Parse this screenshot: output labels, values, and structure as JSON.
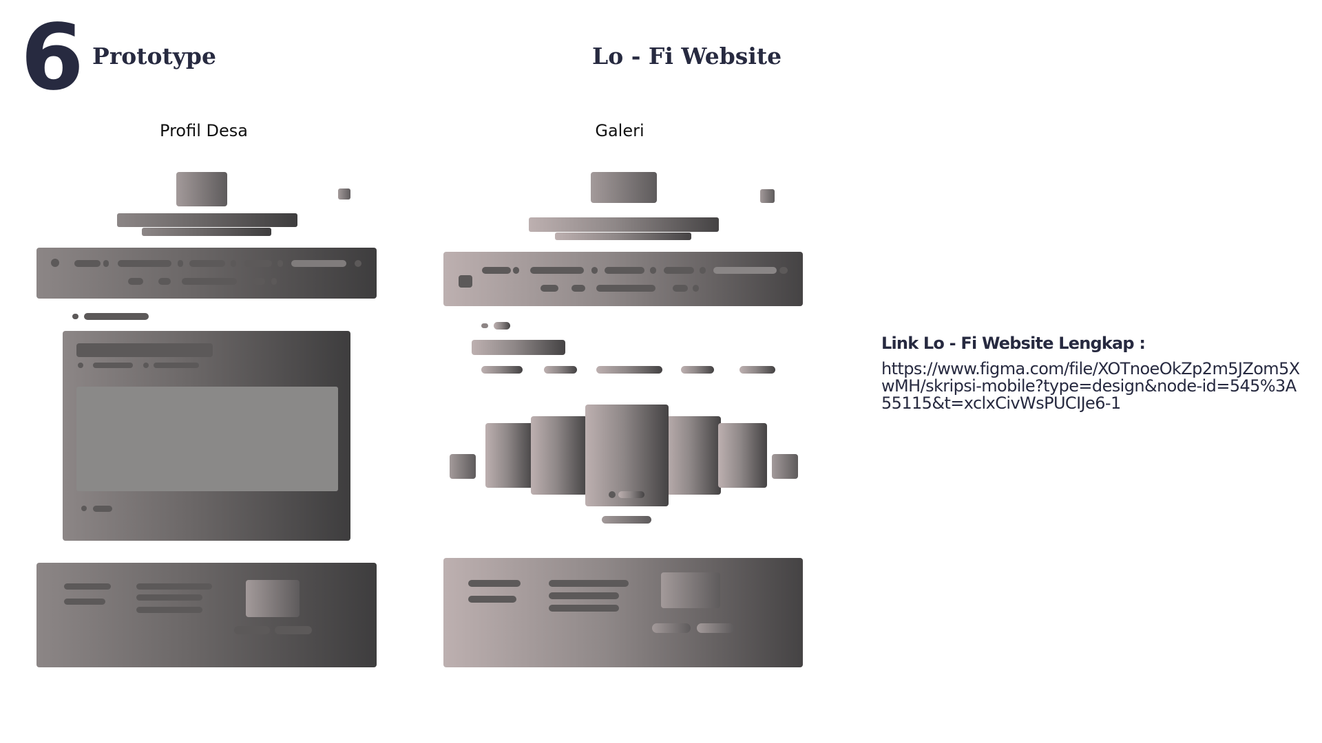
{
  "header": {
    "section_number": "6",
    "title": "Prototype",
    "subtitle": "Lo - Fi Website"
  },
  "frames": [
    {
      "label": "Profil Desa"
    },
    {
      "label": "Galeri"
    }
  ],
  "link": {
    "title": "Link Lo - Fi Website Lengkap :",
    "url": "https://www.figma.com/file/XOTnoeOkZp2m5JZom5XwMH/skripsi-mobile?type=design&node-id=545%3A55115&t=xclxCivWsPUCIJe6-1"
  },
  "colors": {
    "heading": "#272a40",
    "wireframe_dark": "#3e3d3e",
    "wireframe_light": "#bdb0b0"
  }
}
